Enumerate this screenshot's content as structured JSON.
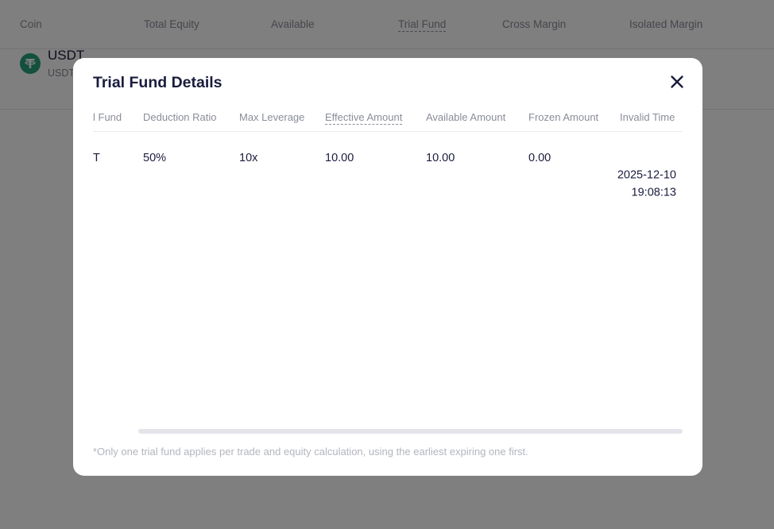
{
  "background": {
    "columns": [
      "Coin",
      "Total Equity",
      "Available",
      "Trial Fund",
      "Cross Margin",
      "Isolated Margin"
    ],
    "row": {
      "coin_name": "USDT",
      "coin_sub": "USDT",
      "coin_icon": "tether-icon",
      "coin_color": "#26a17b"
    }
  },
  "modal": {
    "title": "Trial Fund Details",
    "close_icon": "close-icon",
    "columns": [
      "l Fund",
      "Deduction Ratio",
      "Max Leverage",
      "Effective Amount",
      "Available Amount",
      "Frozen Amount",
      "Invalid Time"
    ],
    "rows": [
      {
        "fund": "T",
        "deduction_ratio": "50%",
        "max_leverage": "10x",
        "effective_amount": "10.00",
        "available_amount": "10.00",
        "frozen_amount": "0.00",
        "invalid_time": "2025-12-10 19:08:13"
      }
    ],
    "footnote": "*Only one trial fund applies per trade and equity calculation, using the earliest expiring one first."
  }
}
